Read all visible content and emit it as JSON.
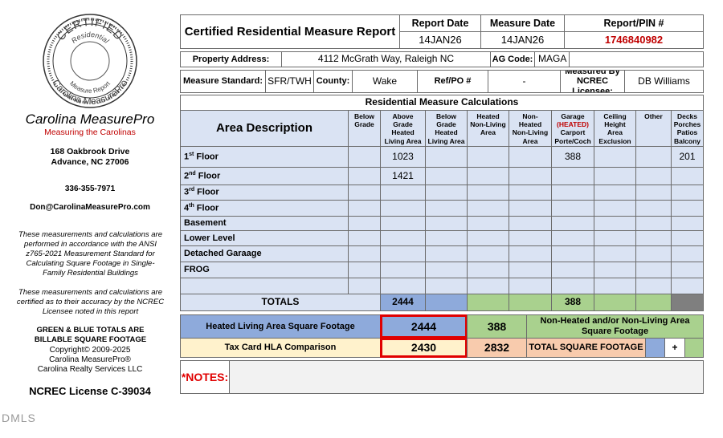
{
  "sidebar": {
    "logo": {
      "ring_top": "CERTIFIED",
      "ring_inner": "Residential",
      "ring_lower": "Measure Report",
      "ring_outer": "Carolina MeasurePro"
    },
    "company": "Carolina MeasurePro",
    "tagline": "Measuring the Carolinas",
    "address": [
      "168 Oakbrook Drive",
      "Advance, NC  27006"
    ],
    "phone": "336-355-7971",
    "email": "Don@CarolinaMeasurePro.com",
    "notes": [
      "These measurements and calculations are performed in accordance with the ANSI z765-2021 Measurement Standard for Calculating Square Footage in Single-Family Residential Buildings",
      "These measurements and calculations are certified as to their accuracy by the NCREC Licensee noted in this report"
    ],
    "billable": "GREEN & BLUE TOTALS ARE BILLABLE SQUARE FOOTAGE",
    "copyright": [
      "Copyright© 2009-2025",
      "Carolina MeasurePro®",
      "Carolina Realty Services LLC"
    ],
    "license": "NCREC License C-39034"
  },
  "watermark": "DMLS",
  "report": {
    "title": "Certified Residential Measure Report",
    "report_date": {
      "label": "Report Date",
      "value": "14JAN26"
    },
    "measure_date": {
      "label": "Measure Date",
      "value": "14JAN26"
    },
    "pin": {
      "label": "Report/PIN #",
      "value": "1746840982"
    },
    "property": {
      "label": "Property Address:",
      "address": "4112 McGrath Way, Raleigh NC",
      "ag_label": "AG Code:",
      "ag_code": "MAGA"
    },
    "standard": {
      "label": "Measure Standard:",
      "value": "SFR/TWH",
      "county_label": "County:",
      "county": "Wake",
      "ref_label": "Ref/PO #",
      "ref": "-",
      "licensee_label": "Measured By NCREC Licensee:",
      "licensee": "DB Williams"
    },
    "calc": {
      "title": "Residential Measure Calculations",
      "area_header": "Area Description",
      "columns": [
        {
          "lines": [
            "Below",
            "Grade"
          ]
        },
        {
          "lines": [
            "Above",
            "Grade",
            "Heated",
            "Living Area"
          ]
        },
        {
          "lines": [
            "Below",
            "Grade",
            "Heated",
            "Living Area"
          ]
        },
        {
          "lines": [
            "Heated",
            "Non-Living",
            "Area"
          ]
        },
        {
          "lines": [
            "Non-",
            "Heated",
            "Non-Living",
            "Area"
          ]
        },
        {
          "lines": [
            "Garage",
            {
              "text": "(HEATED)",
              "color": "#c00000"
            },
            "Carport",
            "Porte/Coch"
          ]
        },
        {
          "lines": [
            "Ceiling",
            "Height",
            "Area",
            "Exclusion"
          ]
        },
        {
          "lines": [
            "Other"
          ]
        },
        {
          "lines": [
            "Decks",
            "Porches",
            "Patios",
            "Balcony"
          ]
        }
      ],
      "rows": [
        {
          "label": {
            "main": "1",
            "sup": "st",
            "rest": " Floor"
          },
          "values": [
            null,
            1023,
            null,
            null,
            null,
            388,
            null,
            null,
            201
          ]
        },
        {
          "label": {
            "main": "2",
            "sup": "nd",
            "rest": " Floor"
          },
          "values": [
            null,
            1421,
            null,
            null,
            null,
            null,
            null,
            null,
            null
          ]
        },
        {
          "label": {
            "main": "3",
            "sup": "rd",
            "rest": " Floor"
          },
          "values": [
            null,
            null,
            null,
            null,
            null,
            null,
            null,
            null,
            null
          ]
        },
        {
          "label": {
            "main": "4",
            "sup": "th",
            "rest": " Floor"
          },
          "values": [
            null,
            null,
            null,
            null,
            null,
            null,
            null,
            null,
            null
          ]
        },
        {
          "label": {
            "main": "Basement"
          },
          "values": [
            null,
            null,
            null,
            null,
            null,
            null,
            null,
            null,
            null
          ]
        },
        {
          "label": {
            "main": "Lower Level"
          },
          "values": [
            null,
            null,
            null,
            null,
            null,
            null,
            null,
            null,
            null
          ]
        },
        {
          "label": {
            "main": "Detached Garaage"
          },
          "values": [
            null,
            null,
            null,
            null,
            null,
            null,
            null,
            null,
            null
          ]
        },
        {
          "label": {
            "main": "FROG"
          },
          "values": [
            null,
            null,
            null,
            null,
            null,
            null,
            null,
            null,
            null
          ]
        },
        {
          "label": null,
          "values": [
            null,
            null,
            null,
            null,
            null,
            null,
            null,
            null,
            null
          ]
        }
      ],
      "totals": {
        "label": "TOTALS",
        "values": [
          2444,
          null,
          null,
          null,
          388,
          null,
          null,
          null
        ],
        "colors": [
          "#8eaadb",
          "#8eaadb",
          "#a9d18e",
          "#a9d18e",
          "#a9d18e",
          "#a9d18e",
          "#a9d18e",
          "#7f7f7f"
        ]
      }
    },
    "summary": {
      "heated_label": "Heated Living Area Square Footage",
      "heated": 2444,
      "nonheated": 388,
      "nonheated_label": "Non-Heated and/or Non-Living Area Square Footage",
      "tax_label": "Tax Card HLA Comparison",
      "tax_hla": 2430,
      "total": 2832,
      "total_label": "TOTAL SQUARE FOOTAGE",
      "plus": "+"
    },
    "notes_label": "*NOTES:"
  }
}
